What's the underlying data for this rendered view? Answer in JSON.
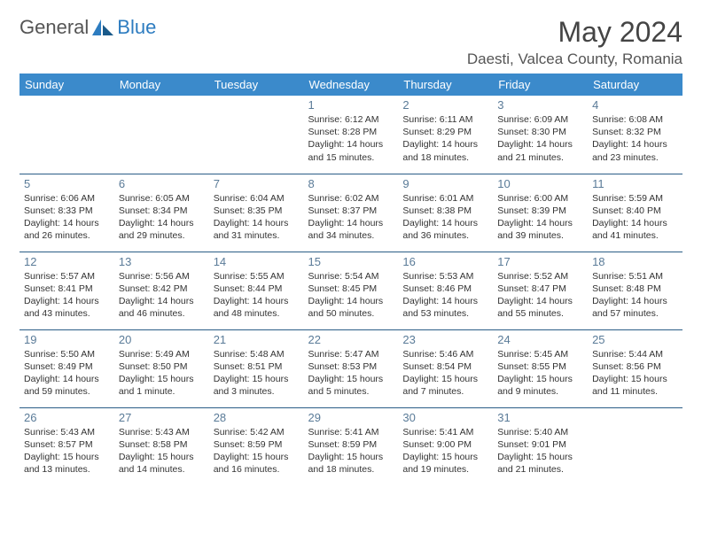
{
  "logo": {
    "text1": "General",
    "text2": "Blue"
  },
  "title": "May 2024",
  "location": "Daesti, Valcea County, Romania",
  "colors": {
    "header_bg": "#3b8acb",
    "header_text": "#ffffff",
    "rule": "#2a5d87",
    "daynum": "#5a7b98",
    "body_text": "#333333",
    "logo_gray": "#555555",
    "logo_blue": "#2d7cc0",
    "background": "#ffffff"
  },
  "day_labels": [
    "Sunday",
    "Monday",
    "Tuesday",
    "Wednesday",
    "Thursday",
    "Friday",
    "Saturday"
  ],
  "weeks": [
    [
      null,
      null,
      null,
      {
        "n": "1",
        "sr": "6:12 AM",
        "ss": "8:28 PM",
        "dl": "14 hours and 15 minutes."
      },
      {
        "n": "2",
        "sr": "6:11 AM",
        "ss": "8:29 PM",
        "dl": "14 hours and 18 minutes."
      },
      {
        "n": "3",
        "sr": "6:09 AM",
        "ss": "8:30 PM",
        "dl": "14 hours and 21 minutes."
      },
      {
        "n": "4",
        "sr": "6:08 AM",
        "ss": "8:32 PM",
        "dl": "14 hours and 23 minutes."
      }
    ],
    [
      {
        "n": "5",
        "sr": "6:06 AM",
        "ss": "8:33 PM",
        "dl": "14 hours and 26 minutes."
      },
      {
        "n": "6",
        "sr": "6:05 AM",
        "ss": "8:34 PM",
        "dl": "14 hours and 29 minutes."
      },
      {
        "n": "7",
        "sr": "6:04 AM",
        "ss": "8:35 PM",
        "dl": "14 hours and 31 minutes."
      },
      {
        "n": "8",
        "sr": "6:02 AM",
        "ss": "8:37 PM",
        "dl": "14 hours and 34 minutes."
      },
      {
        "n": "9",
        "sr": "6:01 AM",
        "ss": "8:38 PM",
        "dl": "14 hours and 36 minutes."
      },
      {
        "n": "10",
        "sr": "6:00 AM",
        "ss": "8:39 PM",
        "dl": "14 hours and 39 minutes."
      },
      {
        "n": "11",
        "sr": "5:59 AM",
        "ss": "8:40 PM",
        "dl": "14 hours and 41 minutes."
      }
    ],
    [
      {
        "n": "12",
        "sr": "5:57 AM",
        "ss": "8:41 PM",
        "dl": "14 hours and 43 minutes."
      },
      {
        "n": "13",
        "sr": "5:56 AM",
        "ss": "8:42 PM",
        "dl": "14 hours and 46 minutes."
      },
      {
        "n": "14",
        "sr": "5:55 AM",
        "ss": "8:44 PM",
        "dl": "14 hours and 48 minutes."
      },
      {
        "n": "15",
        "sr": "5:54 AM",
        "ss": "8:45 PM",
        "dl": "14 hours and 50 minutes."
      },
      {
        "n": "16",
        "sr": "5:53 AM",
        "ss": "8:46 PM",
        "dl": "14 hours and 53 minutes."
      },
      {
        "n": "17",
        "sr": "5:52 AM",
        "ss": "8:47 PM",
        "dl": "14 hours and 55 minutes."
      },
      {
        "n": "18",
        "sr": "5:51 AM",
        "ss": "8:48 PM",
        "dl": "14 hours and 57 minutes."
      }
    ],
    [
      {
        "n": "19",
        "sr": "5:50 AM",
        "ss": "8:49 PM",
        "dl": "14 hours and 59 minutes."
      },
      {
        "n": "20",
        "sr": "5:49 AM",
        "ss": "8:50 PM",
        "dl": "15 hours and 1 minute."
      },
      {
        "n": "21",
        "sr": "5:48 AM",
        "ss": "8:51 PM",
        "dl": "15 hours and 3 minutes."
      },
      {
        "n": "22",
        "sr": "5:47 AM",
        "ss": "8:53 PM",
        "dl": "15 hours and 5 minutes."
      },
      {
        "n": "23",
        "sr": "5:46 AM",
        "ss": "8:54 PM",
        "dl": "15 hours and 7 minutes."
      },
      {
        "n": "24",
        "sr": "5:45 AM",
        "ss": "8:55 PM",
        "dl": "15 hours and 9 minutes."
      },
      {
        "n": "25",
        "sr": "5:44 AM",
        "ss": "8:56 PM",
        "dl": "15 hours and 11 minutes."
      }
    ],
    [
      {
        "n": "26",
        "sr": "5:43 AM",
        "ss": "8:57 PM",
        "dl": "15 hours and 13 minutes."
      },
      {
        "n": "27",
        "sr": "5:43 AM",
        "ss": "8:58 PM",
        "dl": "15 hours and 14 minutes."
      },
      {
        "n": "28",
        "sr": "5:42 AM",
        "ss": "8:59 PM",
        "dl": "15 hours and 16 minutes."
      },
      {
        "n": "29",
        "sr": "5:41 AM",
        "ss": "8:59 PM",
        "dl": "15 hours and 18 minutes."
      },
      {
        "n": "30",
        "sr": "5:41 AM",
        "ss": "9:00 PM",
        "dl": "15 hours and 19 minutes."
      },
      {
        "n": "31",
        "sr": "5:40 AM",
        "ss": "9:01 PM",
        "dl": "15 hours and 21 minutes."
      },
      null
    ]
  ],
  "labels": {
    "sunrise": "Sunrise:",
    "sunset": "Sunset:",
    "daylight": "Daylight:"
  }
}
